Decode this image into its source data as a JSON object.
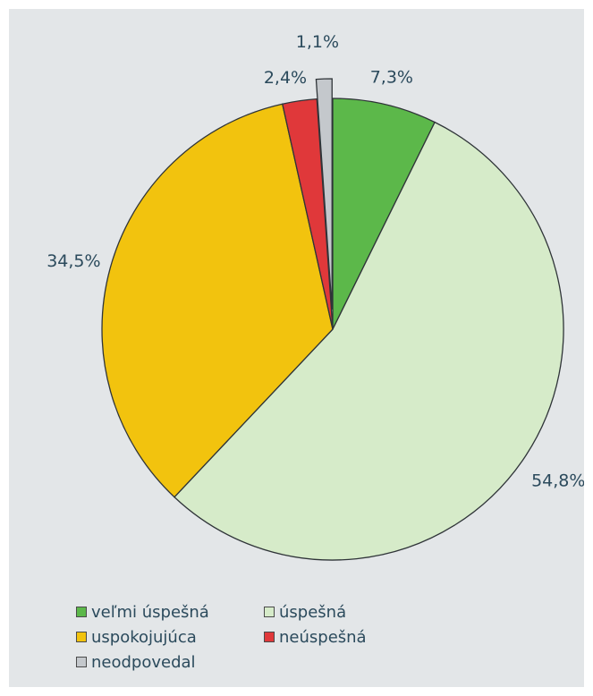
{
  "chart_data": {
    "type": "pie",
    "title": "",
    "start_angle_deg": 0,
    "direction": "clockwise",
    "slices": [
      {
        "label": "veľmi úspešná",
        "value": 7.3,
        "display": "7,3%",
        "color": "#5cb84a"
      },
      {
        "label": "úspešná",
        "value": 54.8,
        "display": "54,8%",
        "color": "#d6ebc9"
      },
      {
        "label": "uspokojujúca",
        "value": 34.5,
        "display": "34,5%",
        "color": "#f2c30e"
      },
      {
        "label": "neúspešná",
        "value": 2.4,
        "display": "2,4%",
        "color": "#e0383a"
      },
      {
        "label": "neodpovedal",
        "value": 1.1,
        "display": "1,1%",
        "color": "#c4c8cc"
      }
    ],
    "exploded_slice": "neodpovedal",
    "legend_placement": "bottom"
  }
}
